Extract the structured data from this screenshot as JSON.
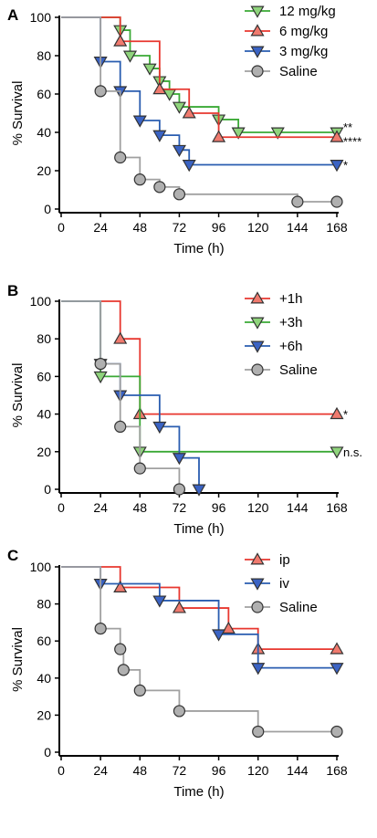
{
  "chart_data": [
    {
      "panel_label": "A",
      "type": "line",
      "step": true,
      "xlabel": "Time (h)",
      "ylabel": "% Survival",
      "xlim": [
        0,
        168
      ],
      "ylim": [
        0,
        100
      ],
      "xticks": [
        0,
        24,
        48,
        72,
        96,
        120,
        144,
        168
      ],
      "yticks": [
        0,
        20,
        40,
        60,
        80,
        100
      ],
      "legend_position": "top-right",
      "series": [
        {
          "name": "12 mg/kg",
          "color": "#3aa935",
          "marker_fill": "#8fd47c",
          "marker": "triangle-down",
          "x": [
            0,
            36,
            42,
            54,
            60,
            66,
            72,
            96,
            108,
            132,
            168
          ],
          "y": [
            100,
            93.3,
            80,
            73.3,
            66.7,
            60,
            53.3,
            46.7,
            40,
            40,
            40
          ],
          "stars": "**"
        },
        {
          "name": "6 mg/kg",
          "color": "#e8372f",
          "marker_fill": "#f07a6e",
          "marker": "triangle-up",
          "x": [
            0,
            36,
            60,
            78,
            96,
            168
          ],
          "y": [
            100,
            87.5,
            62.5,
            50,
            37.5,
            37.5
          ],
          "stars": "****"
        },
        {
          "name": "3 mg/kg",
          "color": "#2a5db0",
          "marker_fill": "#3a63c4",
          "marker": "triangle-down",
          "x": [
            0,
            24,
            36,
            48,
            60,
            72,
            78,
            168
          ],
          "y": [
            100,
            76.9,
            61.5,
            46.2,
            38.5,
            30.8,
            23.1,
            23.1
          ],
          "stars": "*"
        },
        {
          "name": "Saline",
          "color": "#a0a0a0",
          "marker_fill": "#b0b0b0",
          "marker": "circle",
          "x": [
            0,
            24,
            36,
            48,
            60,
            72,
            144,
            168
          ],
          "y": [
            100,
            61.5,
            26.9,
            15.4,
            11.5,
            7.7,
            3.8,
            3.8
          ],
          "stars": ""
        }
      ]
    },
    {
      "panel_label": "B",
      "type": "line",
      "step": true,
      "xlabel": "Time (h)",
      "ylabel": "% Survival",
      "xlim": [
        0,
        168
      ],
      "ylim": [
        0,
        100
      ],
      "xticks": [
        0,
        24,
        48,
        72,
        96,
        120,
        144,
        168
      ],
      "yticks": [
        0,
        20,
        40,
        60,
        80,
        100
      ],
      "legend_position": "top-right",
      "series": [
        {
          "name": "+1h",
          "color": "#e8372f",
          "marker_fill": "#f07a6e",
          "marker": "triangle-up",
          "x": [
            0,
            36,
            48,
            168
          ],
          "y": [
            100,
            80,
            40,
            40
          ],
          "stars": "*"
        },
        {
          "name": "+3h",
          "color": "#3aa935",
          "marker_fill": "#8fd47c",
          "marker": "triangle-down",
          "x": [
            0,
            24,
            48,
            168
          ],
          "y": [
            100,
            60,
            20,
            20
          ],
          "stars": "n.s."
        },
        {
          "name": "+6h",
          "color": "#2a5db0",
          "marker_fill": "#3a63c4",
          "marker": "triangle-down",
          "x": [
            0,
            24,
            36,
            60,
            72,
            84
          ],
          "y": [
            100,
            66.7,
            50,
            33.3,
            16.7,
            0
          ],
          "stars": ""
        },
        {
          "name": "Saline",
          "color": "#a0a0a0",
          "marker_fill": "#b0b0b0",
          "marker": "circle",
          "x": [
            0,
            24,
            36,
            48,
            72
          ],
          "y": [
            100,
            66.7,
            33.3,
            11.1,
            0
          ],
          "stars": ""
        }
      ]
    },
    {
      "panel_label": "C",
      "type": "line",
      "step": true,
      "xlabel": "Time (h)",
      "ylabel": "% Survival",
      "xlim": [
        0,
        168
      ],
      "ylim": [
        0,
        100
      ],
      "xticks": [
        0,
        24,
        48,
        72,
        96,
        120,
        144,
        168
      ],
      "yticks": [
        0,
        20,
        40,
        60,
        80,
        100
      ],
      "legend_position": "top-right",
      "series": [
        {
          "name": "ip",
          "color": "#e8372f",
          "marker_fill": "#f07a6e",
          "marker": "triangle-up",
          "x": [
            0,
            36,
            72,
            102,
            120,
            168
          ],
          "y": [
            100,
            88.9,
            77.8,
            66.7,
            55.6,
            55.6
          ],
          "stars": ""
        },
        {
          "name": "iv",
          "color": "#2a5db0",
          "marker_fill": "#3a63c4",
          "marker": "triangle-down",
          "x": [
            0,
            24,
            60,
            96,
            120,
            168
          ],
          "y": [
            100,
            90.9,
            81.8,
            63.6,
            45.5,
            45.5
          ],
          "stars": ""
        },
        {
          "name": "Saline",
          "color": "#a0a0a0",
          "marker_fill": "#b0b0b0",
          "marker": "circle",
          "x": [
            0,
            24,
            36,
            38,
            48,
            72,
            120,
            168
          ],
          "y": [
            100,
            66.7,
            55.6,
            44.4,
            33.3,
            22.2,
            11.1,
            11.1
          ],
          "stars": ""
        }
      ]
    }
  ]
}
